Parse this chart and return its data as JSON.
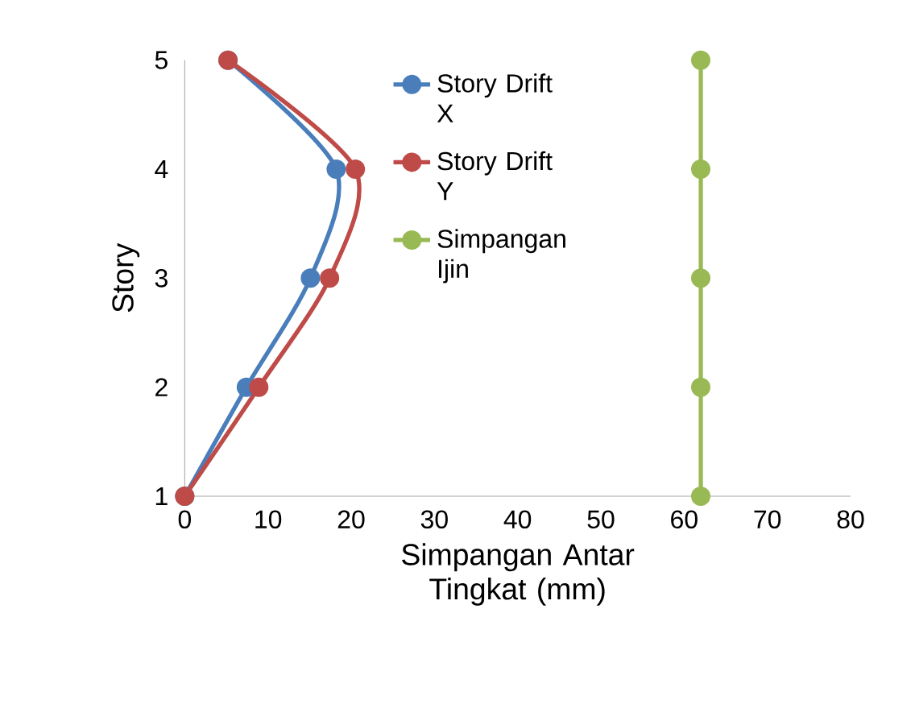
{
  "chart_data": {
    "type": "line",
    "xlabel": "Simpangan Antar Tingkat (mm)",
    "ylabel": "Story",
    "xlim": [
      0,
      80
    ],
    "xticks": [
      0,
      10,
      20,
      30,
      40,
      50,
      60,
      70,
      80
    ],
    "ylim": [
      1,
      5
    ],
    "yticks": [
      1,
      2,
      3,
      4,
      5
    ],
    "grid": false,
    "legend": "top",
    "marker": "circle",
    "line_style": "solid",
    "series": [
      {
        "name": "Story Drift X",
        "color": "#4a7ebb",
        "x": [
          0,
          7.4,
          15.1,
          18.2,
          5.2
        ],
        "values": [
          1,
          2,
          3,
          4,
          5
        ]
      },
      {
        "name": "Story Drift Y",
        "color": "#be4b48",
        "x": [
          0,
          8.9,
          17.4,
          20.5,
          5.2
        ],
        "values": [
          1,
          2,
          3,
          4,
          5
        ]
      },
      {
        "name": "Simpangan Ijin",
        "color": "#98b954",
        "x": [
          62,
          62,
          62,
          62,
          62
        ],
        "values": [
          1,
          2,
          3,
          4,
          5
        ]
      }
    ]
  }
}
